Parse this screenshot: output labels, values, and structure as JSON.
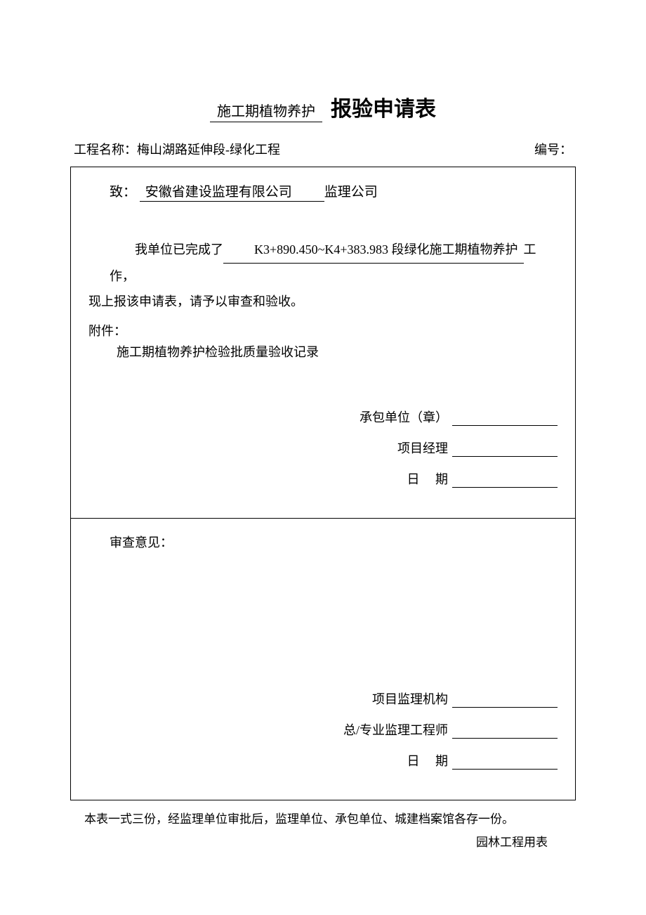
{
  "title": {
    "prefix": "施工期植物养护",
    "main": "报验申请表"
  },
  "header": {
    "project_label": "工程名称：",
    "project_name": "梅山湖路延伸段-绿化工程",
    "number_label": "编号："
  },
  "top_section": {
    "to_label": "致：",
    "to_company": "安徽省建设监理有限公司",
    "to_suffix": "监理公司",
    "body_prefix": "我单位已完成了",
    "body_underlined": "K3+890.450~K4+383.983 段绿化施工期植物养护",
    "body_suffix": "工作，",
    "body_line2": "现上报该申请表，请予以审查和验收。",
    "attachment_label": "附件：",
    "attachment_text": "施工期植物养护检验批质量验收记录",
    "sig_contractor": "承包单位（章）",
    "sig_manager": "项目经理",
    "sig_date_label": "日",
    "sig_date_label2": "期"
  },
  "bottom_section": {
    "review_label": "审查意见：",
    "sig_supervisor_org": "项目监理机构",
    "sig_engineer": "总/专业监理工程师",
    "sig_date_label": "日",
    "sig_date_label2": "期"
  },
  "footer": {
    "note": "本表一式三份，经监理单位审批后，监理单位、承包单位、城建档案馆各存一份。",
    "right": "园林工程用表"
  },
  "colors": {
    "text": "#000000",
    "background": "#ffffff",
    "border": "#000000"
  },
  "typography": {
    "title_main_fontsize": 30,
    "title_prefix_fontsize": 20,
    "body_fontsize": 18,
    "footer_fontsize": 17,
    "font_family": "SimSun"
  }
}
